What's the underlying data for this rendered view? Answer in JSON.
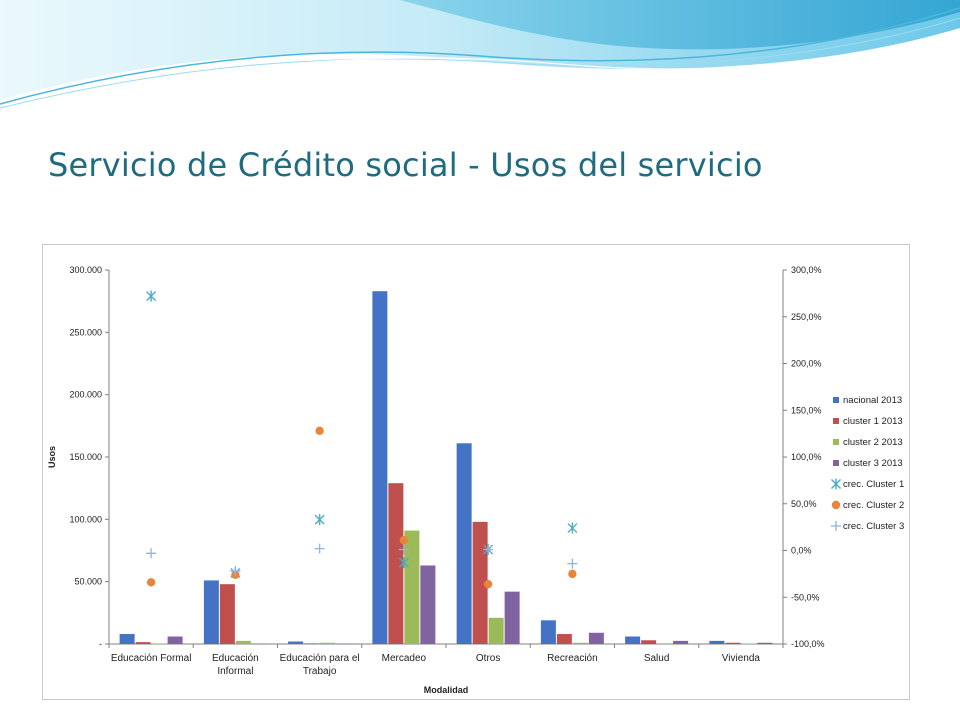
{
  "slide": {
    "title": "Servicio de Crédito social - Usos del servicio"
  },
  "colors": {
    "title": "#1f6b7f",
    "banner_light": "#c9eef8",
    "banner_mid": "#7fd0ea",
    "banner_dark": "#3aa9d4"
  },
  "chart_data": {
    "type": "bar",
    "xlabel": "Modalidad",
    "ylabel": "Usos",
    "ylim": [
      0,
      300000
    ],
    "y2lim": [
      -100,
      300
    ],
    "categories": [
      [
        "Educación Formal"
      ],
      [
        "Educación",
        "Informal"
      ],
      [
        "Educación para el",
        "Trabajo"
      ],
      [
        "Mercadeo"
      ],
      [
        "Otros"
      ],
      [
        "Recreación"
      ],
      [
        "Salud"
      ],
      [
        "Vivienda"
      ]
    ],
    "y_ticks": [
      {
        "value": 0,
        "label": "-"
      },
      {
        "value": 50000,
        "label": "50.000"
      },
      {
        "value": 100000,
        "label": "100.000"
      },
      {
        "value": 150000,
        "label": "150.000"
      },
      {
        "value": 200000,
        "label": "200.000"
      },
      {
        "value": 250000,
        "label": "250.000"
      },
      {
        "value": 300000,
        "label": "300.000"
      }
    ],
    "y2_ticks": [
      {
        "value": -100,
        "label": "-100,0%"
      },
      {
        "value": -50,
        "label": "-50,0%"
      },
      {
        "value": 0,
        "label": "0,0%"
      },
      {
        "value": 50,
        "label": "50,0%"
      },
      {
        "value": 100,
        "label": "100,0%"
      },
      {
        "value": 150,
        "label": "150,0%"
      },
      {
        "value": 200,
        "label": "200,0%"
      },
      {
        "value": 250,
        "label": "250,0%"
      },
      {
        "value": 300,
        "label": "300,0%"
      }
    ],
    "series": [
      {
        "name": "nacional 2013",
        "kind": "bar",
        "color": "#4472c4",
        "values": [
          8000,
          51000,
          2000,
          283000,
          161000,
          19000,
          6000,
          2500
        ]
      },
      {
        "name": "cluster 1 2013",
        "kind": "bar",
        "color": "#c0504d",
        "values": [
          1500,
          48000,
          500,
          129000,
          98000,
          8000,
          3000,
          1000
        ]
      },
      {
        "name": "cluster 2 2013",
        "kind": "bar",
        "color": "#9bbb59",
        "values": [
          300,
          2500,
          1000,
          91000,
          21000,
          1000,
          500,
          300
        ]
      },
      {
        "name": "cluster 3 2013",
        "kind": "bar",
        "color": "#8064a2",
        "values": [
          6000,
          300,
          200,
          63000,
          42000,
          9000,
          2500,
          1000
        ]
      },
      {
        "name": "crec. Cluster 1",
        "kind": "marker",
        "marker": "star",
        "color": "#4bacc6",
        "axis": "secondary",
        "values": [
          272,
          -24,
          33,
          -13,
          1,
          24,
          null,
          null
        ]
      },
      {
        "name": "crec. Cluster 2",
        "kind": "marker",
        "marker": "circle",
        "color": "#e8853a",
        "axis": "secondary",
        "values": [
          -34,
          -26,
          128,
          11,
          -36,
          -25,
          null,
          null
        ]
      },
      {
        "name": "crec. Cluster 3",
        "kind": "marker",
        "marker": "plus",
        "color": "#8eb4e3",
        "axis": "secondary",
        "values": [
          -3,
          -22,
          2,
          1,
          1,
          -14,
          null,
          null
        ]
      }
    ],
    "legend": "right",
    "grid": false
  }
}
